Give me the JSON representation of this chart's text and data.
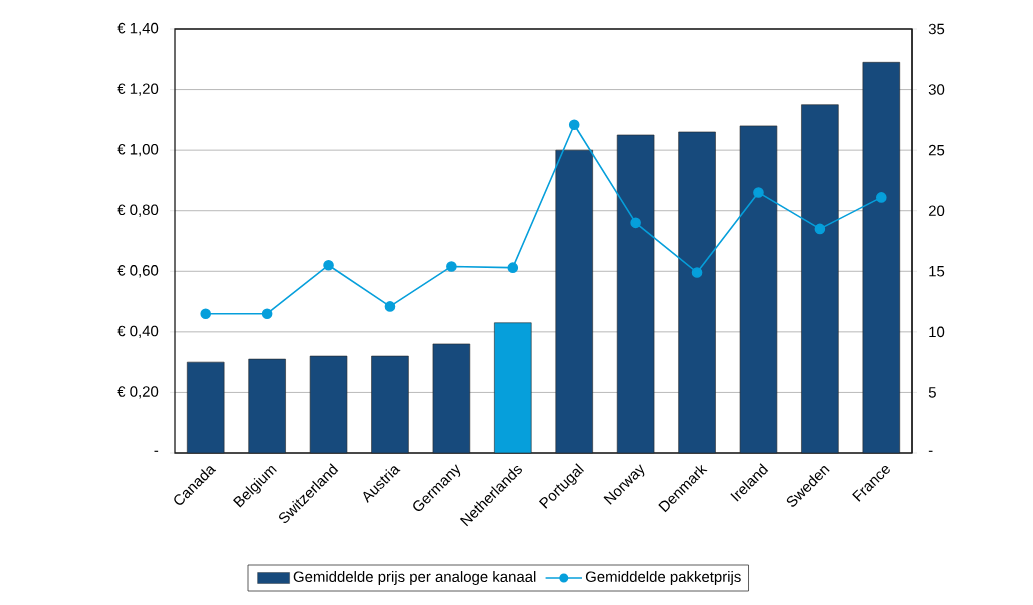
{
  "chart_data": {
    "type": "bar",
    "categories": [
      "Canada",
      "Belgium",
      "Switzerland",
      "Austria",
      "Germany",
      "Netherlands",
      "Portugal",
      "Norway",
      "Denmark",
      "Ireland",
      "Sweden",
      "France"
    ],
    "series": [
      {
        "name": "Gemiddelde prijs per analoge kanaal",
        "colors": [
          "#174a7c",
          "#174a7c",
          "#174a7c",
          "#174a7c",
          "#174a7c",
          "#069fdb",
          "#174a7c",
          "#174a7c",
          "#174a7c",
          "#174a7c",
          "#174a7c",
          "#174a7c"
        ],
        "values": [
          0.3,
          0.31,
          0.32,
          0.32,
          0.36,
          0.43,
          1.0,
          1.05,
          1.06,
          1.08,
          1.15,
          1.29
        ]
      },
      {
        "name": "Gemiddelde pakketprijs",
        "type": "line",
        "axis": "y2",
        "color": "#069fdb",
        "values": [
          11.5,
          11.5,
          15.5,
          12.1,
          15.4,
          15.3,
          27.1,
          19.0,
          14.9,
          21.5,
          18.5,
          21.1
        ]
      }
    ],
    "ylim": [
      0,
      1.4
    ],
    "yticks": [
      {
        "value": 0,
        "label": "-"
      },
      {
        "value": 0.2,
        "label": "€ 0,20"
      },
      {
        "value": 0.4,
        "label": "€ 0,40"
      },
      {
        "value": 0.6,
        "label": "€ 0,60"
      },
      {
        "value": 0.8,
        "label": "€ 0,80"
      },
      {
        "value": 1.0,
        "label": "€ 1,00"
      },
      {
        "value": 1.2,
        "label": "€ 1,20"
      },
      {
        "value": 1.4,
        "label": "€ 1,40"
      }
    ],
    "y2lim": [
      0,
      35
    ],
    "y2ticks": [
      {
        "value": 0,
        "label": "-"
      },
      5,
      10,
      15,
      20,
      25,
      30,
      35
    ],
    "grid": "y",
    "legend": "bottom",
    "marker": "circle"
  }
}
